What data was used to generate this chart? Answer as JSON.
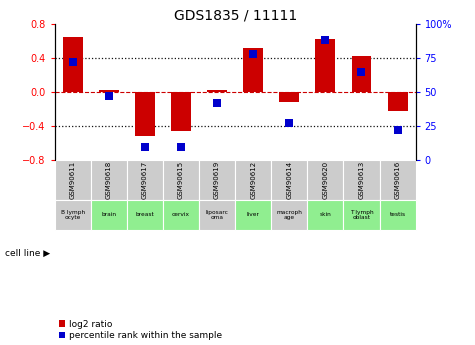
{
  "title": "GDS1835 / 11111",
  "samples": [
    "GSM90611",
    "GSM90618",
    "GSM90617",
    "GSM90615",
    "GSM90619",
    "GSM90612",
    "GSM90614",
    "GSM90620",
    "GSM90613",
    "GSM90616"
  ],
  "cell_lines": [
    "B lymph\nocyte",
    "brain",
    "breast",
    "cervix",
    "liposarc\noma",
    "liver",
    "macroph\nage",
    "skin",
    "T lymph\noblast",
    "testis"
  ],
  "cell_bg": [
    "#cccccc",
    "#90ee90",
    "#90ee90",
    "#90ee90",
    "#cccccc",
    "#90ee90",
    "#cccccc",
    "#90ee90",
    "#90ee90",
    "#90ee90"
  ],
  "log2_ratio": [
    0.65,
    0.02,
    -0.52,
    -0.46,
    0.02,
    0.52,
    -0.12,
    0.62,
    0.42,
    -0.22
  ],
  "pct_rank": [
    0.72,
    0.47,
    0.1,
    0.1,
    0.42,
    0.78,
    0.27,
    0.88,
    0.65,
    0.22
  ],
  "ylim_left": [
    -0.8,
    0.8
  ],
  "ylim_right": [
    0,
    100
  ],
  "yticks_left": [
    -0.8,
    -0.4,
    0.0,
    0.4,
    0.8
  ],
  "yticks_right": [
    0,
    25,
    50,
    75,
    100
  ],
  "ytick_labels_right": [
    "0",
    "25",
    "50",
    "75",
    "100%"
  ],
  "bar_color": "#cc0000",
  "dot_color": "#0000cc",
  "zero_line_color": "#cc0000",
  "grid_color": "#111111",
  "sample_bg": "#cccccc",
  "bar_width": 0.55,
  "dot_size": 28
}
